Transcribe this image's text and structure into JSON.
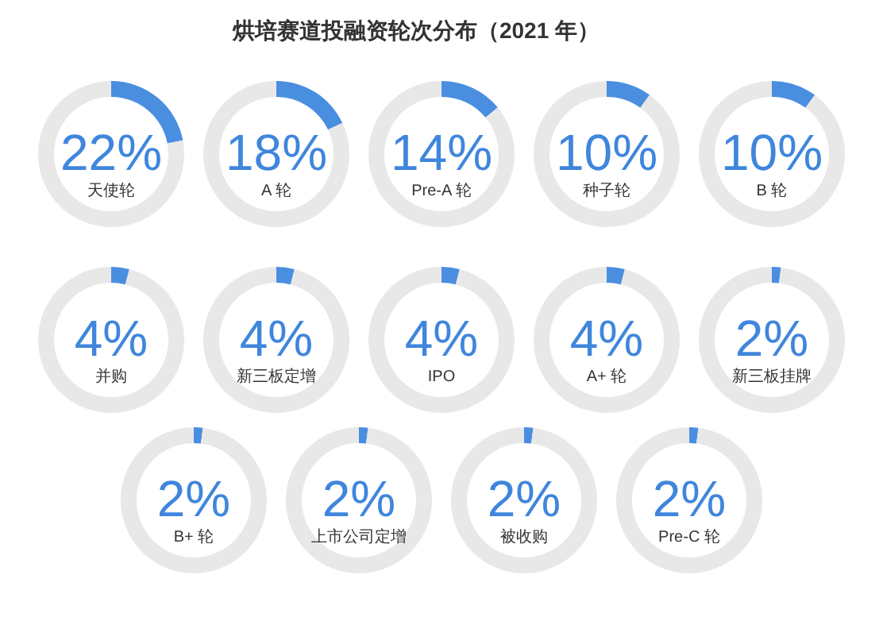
{
  "chart_data": [
    {
      "type": "other",
      "title": "烘培赛道投融资轮次分布（2021 年）"
    },
    {
      "type": "donut",
      "categories": [
        "天使轮",
        null
      ],
      "values": [
        22,
        78
      ],
      "colors": [
        "#4a8ee0",
        "#e8e8e8"
      ],
      "value_labels": [
        "22%",
        null
      ]
    },
    {
      "type": "donut",
      "categories": [
        "A 轮",
        null
      ],
      "values": [
        18,
        82
      ],
      "colors": [
        "#4a8ee0",
        "#e8e8e8"
      ],
      "value_labels": [
        "18%",
        null
      ]
    },
    {
      "type": "donut",
      "categories": [
        "Pre-A 轮",
        null
      ],
      "values": [
        14,
        86
      ],
      "colors": [
        "#4a8ee0",
        "#e8e8e8"
      ],
      "value_labels": [
        "14%",
        null
      ]
    },
    {
      "type": "donut",
      "categories": [
        "种子轮",
        null
      ],
      "values": [
        10,
        90
      ],
      "colors": [
        "#4a8ee0",
        "#e8e8e8"
      ],
      "value_labels": [
        "10%",
        null
      ]
    },
    {
      "type": "donut",
      "categories": [
        "B 轮",
        null
      ],
      "values": [
        10,
        90
      ],
      "colors": [
        "#4a8ee0",
        "#e8e8e8"
      ],
      "value_labels": [
        "10%",
        null
      ]
    },
    {
      "type": "donut",
      "categories": [
        "并购",
        null
      ],
      "values": [
        4,
        96
      ],
      "colors": [
        "#4a8ee0",
        "#e8e8e8"
      ],
      "value_labels": [
        "4%",
        null
      ]
    },
    {
      "type": "donut",
      "categories": [
        "新三板定增",
        null
      ],
      "values": [
        4,
        96
      ],
      "colors": [
        "#4a8ee0",
        "#e8e8e8"
      ],
      "value_labels": [
        "4%",
        null
      ]
    },
    {
      "type": "donut",
      "categories": [
        "IPO",
        null
      ],
      "values": [
        4,
        96
      ],
      "colors": [
        "#4a8ee0",
        "#e8e8e8"
      ],
      "value_labels": [
        "4%",
        null
      ]
    },
    {
      "type": "donut",
      "categories": [
        "A+ 轮",
        null
      ],
      "values": [
        4,
        96
      ],
      "colors": [
        "#4a8ee0",
        "#e8e8e8"
      ],
      "value_labels": [
        "4%",
        null
      ]
    },
    {
      "type": "donut",
      "categories": [
        "新三板挂牌",
        null
      ],
      "values": [
        2,
        98
      ],
      "colors": [
        "#4a8ee0",
        "#e8e8e8"
      ],
      "value_labels": [
        "2%",
        null
      ]
    },
    {
      "type": "donut",
      "categories": [
        "B+ 轮",
        null
      ],
      "values": [
        2,
        98
      ],
      "colors": [
        "#4a8ee0",
        "#e8e8e8"
      ],
      "value_labels": [
        "2%",
        null
      ]
    },
    {
      "type": "donut",
      "categories": [
        "上市公司定增",
        null
      ],
      "values": [
        2,
        98
      ],
      "colors": [
        "#4a8ee0",
        "#e8e8e8"
      ],
      "value_labels": [
        "2%",
        null
      ]
    },
    {
      "type": "donut",
      "categories": [
        "被收购",
        null
      ],
      "values": [
        2,
        98
      ],
      "colors": [
        "#4a8ee0",
        "#e8e8e8"
      ],
      "value_labels": [
        "2%",
        null
      ]
    },
    {
      "type": "donut",
      "categories": [
        "Pre-C 轮",
        null
      ],
      "values": [
        2,
        98
      ],
      "colors": [
        "#4a8ee0",
        "#e8e8e8"
      ],
      "value_labels": [
        "2%",
        null
      ]
    }
  ]
}
